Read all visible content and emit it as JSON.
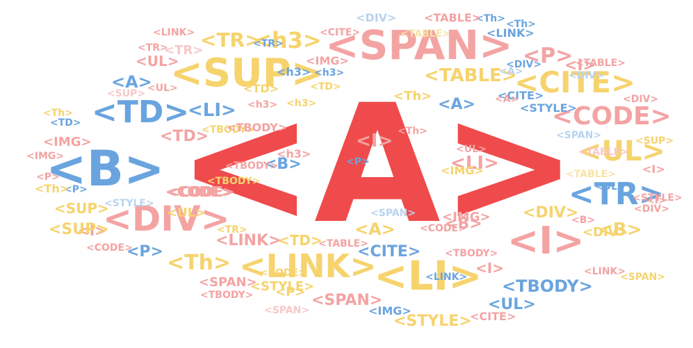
{
  "palette": {
    "red": "#ef4b4c",
    "pink": "#f4a3a3",
    "yellow": "#f6d36d",
    "blue": "#6aa4df",
    "palepink": "#f7c8c8",
    "paleyellow": "#f8e3a6",
    "paleblue": "#b9d3ee"
  },
  "words": [
    {
      "text": "<A>",
      "color": "red"
    },
    {
      "text": "<B>",
      "color": "blue"
    },
    {
      "text": "<SPAN>",
      "color": "pink"
    },
    {
      "text": "<SUP>",
      "color": "yellow"
    },
    {
      "text": "<CITE>",
      "color": "yellow"
    },
    {
      "text": "<LI>",
      "color": "yellow"
    },
    {
      "text": "<DIV>",
      "color": "pink"
    },
    {
      "text": "<LINK>",
      "color": "yellow"
    },
    {
      "text": "<I>",
      "color": "pink"
    },
    {
      "text": "<TD>",
      "color": "blue"
    },
    {
      "text": "<TR>",
      "color": "blue"
    },
    {
      "text": "<UL>",
      "color": "yellow"
    },
    {
      "text": "<CODE>",
      "color": "pink"
    },
    {
      "text": "<h3>",
      "color": "yellow"
    },
    {
      "text": "<TR>",
      "color": "yellow"
    },
    {
      "text": "<P>",
      "color": "pink"
    },
    {
      "text": "<TABLE>",
      "color": "yellow"
    },
    {
      "text": "<A>",
      "color": "blue"
    },
    {
      "text": "<LI>",
      "color": "blue"
    },
    {
      "text": "<Th>",
      "color": "yellow"
    },
    {
      "text": "<TBODY>",
      "color": "blue"
    },
    {
      "text": "<CODE>",
      "color": "pink"
    },
    {
      "text": "<SUP>",
      "color": "yellow"
    },
    {
      "text": "<TD>",
      "color": "pink"
    },
    {
      "text": "<UL>",
      "color": "pink"
    },
    {
      "text": "<I>",
      "color": "pink"
    },
    {
      "text": "<SPAN>",
      "color": "pink"
    },
    {
      "text": "<STYLE>",
      "color": "yellow"
    },
    {
      "text": "<IMG>",
      "color": "pink"
    },
    {
      "text": "<B>",
      "color": "yellow"
    },
    {
      "text": "<DIV>",
      "color": "yellow"
    },
    {
      "text": "<TBODY>",
      "color": "yellow"
    },
    {
      "text": "<CITE>",
      "color": "blue"
    },
    {
      "text": "<A>",
      "color": "yellow"
    },
    {
      "text": "<B>",
      "color": "blue"
    },
    {
      "text": "<I>",
      "color": "pink"
    },
    {
      "text": "<LI>",
      "color": "pink"
    },
    {
      "text": "<P>",
      "color": "blue"
    },
    {
      "text": "<IMG>",
      "color": "pink"
    },
    {
      "text": "<TD>",
      "color": "yellow"
    },
    {
      "text": "<TBODY>",
      "color": "pink"
    },
    {
      "text": "<Th>",
      "color": "yellow"
    },
    {
      "text": "<TABLE>",
      "color": "pink"
    },
    {
      "text": "<SPAN>",
      "color": "paleblue"
    },
    {
      "text": "<h3>",
      "color": "pink"
    },
    {
      "text": "<B>",
      "color": "pink"
    },
    {
      "text": "<P>",
      "color": "blue"
    },
    {
      "text": "<CITE>",
      "color": "pink"
    },
    {
      "text": "<LINK>",
      "color": "pink"
    },
    {
      "text": "<TD>",
      "color": "yellow"
    },
    {
      "text": "<TABLE>",
      "color": "paleyellow"
    },
    {
      "text": "<CITE>",
      "color": "blue"
    },
    {
      "text": "<TBODY>",
      "color": "pink"
    },
    {
      "text": "<P>",
      "color": "yellow"
    },
    {
      "text": "<IMG>",
      "color": "yellow"
    },
    {
      "text": "<I>",
      "color": "pink"
    },
    {
      "text": "<UL>",
      "color": "blue"
    },
    {
      "text": "<STYLE>",
      "color": "pink"
    },
    {
      "text": "<UL>",
      "color": "yellow"
    },
    {
      "text": "<CODE>",
      "color": "pink"
    },
    {
      "text": "<STYLE>",
      "color": "paleblue"
    },
    {
      "text": "<TR>",
      "color": "palepink"
    },
    {
      "text": "<I>",
      "color": "pink"
    },
    {
      "text": "<DIV>",
      "color": "pink"
    },
    {
      "text": "<Th>",
      "color": "yellow"
    },
    {
      "text": "<SPAN>",
      "color": "yellow"
    },
    {
      "text": "<TBODY>",
      "color": "pink"
    },
    {
      "text": "<TBODY>",
      "color": "yellow"
    },
    {
      "text": "<SPAN>",
      "color": "pink"
    },
    {
      "text": "<IMG>",
      "color": "blue"
    },
    {
      "text": "<STYLE>",
      "color": "yellow"
    },
    {
      "text": "<CITE>",
      "color": "pink"
    },
    {
      "text": "<UL>",
      "color": "blue"
    },
    {
      "text": "<LINK>",
      "color": "blue"
    },
    {
      "text": "<DIV>",
      "color": "yellow"
    },
    {
      "text": "<Th>",
      "color": "blue"
    },
    {
      "text": "<TABLE>",
      "color": "pink"
    },
    {
      "text": "<DIV>",
      "color": "paleblue"
    },
    {
      "text": "<IMG>",
      "color": "pink"
    },
    {
      "text": "<SPAN>",
      "color": "palepink"
    },
    {
      "text": "<SUP>",
      "color": "yellow"
    },
    {
      "text": "<I>",
      "color": "pink"
    },
    {
      "text": "<STYLE>",
      "color": "blue"
    },
    {
      "text": "<CODE>",
      "color": "pink"
    },
    {
      "text": "<P>",
      "color": "blue"
    },
    {
      "text": "<Th>",
      "color": "yellow"
    },
    {
      "text": "<I>",
      "color": "pink"
    },
    {
      "text": "<IMG>",
      "color": "pink"
    },
    {
      "text": "<P>",
      "color": "pink"
    },
    {
      "text": "<TD>",
      "color": "yellow"
    },
    {
      "text": "<Th>",
      "color": "pink"
    },
    {
      "text": "<SUP>",
      "color": "palepink"
    },
    {
      "text": "<A>",
      "color": "blue"
    },
    {
      "text": "<LINK>",
      "color": "pink"
    },
    {
      "text": "<UL>",
      "color": "pink"
    },
    {
      "text": "<TR>",
      "color": "pink"
    },
    {
      "text": "<h3>",
      "color": "yellow"
    },
    {
      "text": "<h3>",
      "color": "blue"
    },
    {
      "text": "<TABLE>",
      "color": "paleyellow"
    },
    {
      "text": "<DIV>",
      "color": "paleblue"
    },
    {
      "text": "<SUP>",
      "color": "yellow"
    },
    {
      "text": "<CODE>",
      "color": "yellow"
    },
    {
      "text": "<LINK>",
      "color": "pink"
    },
    {
      "text": "<Th>",
      "color": "blue"
    },
    {
      "text": "<B>",
      "color": "pink"
    },
    {
      "text": "<TR>",
      "color": "blue"
    },
    {
      "text": "<TBODY>",
      "color": "pink"
    },
    {
      "text": "<TABLE>",
      "color": "pink"
    },
    {
      "text": "<CODE>",
      "color": "pink"
    },
    {
      "text": "<LINK>",
      "color": "blue"
    },
    {
      "text": "<UL>",
      "color": "pink"
    },
    {
      "text": "<h3>",
      "color": "pink"
    },
    {
      "text": "<TR>",
      "color": "yellow"
    },
    {
      "text": "<h3>",
      "color": "blue"
    },
    {
      "text": "<A>",
      "color": "pink"
    },
    {
      "text": "<DIV>",
      "color": "blue"
    },
    {
      "text": "<SPAN>",
      "color": "paleblue"
    },
    {
      "text": "<TABLE>",
      "color": "palepink"
    },
    {
      "text": "<A>",
      "color": "paleblue"
    },
    {
      "text": "<DIV>",
      "color": "pink"
    },
    {
      "text": "<TD>",
      "color": "blue"
    }
  ]
}
